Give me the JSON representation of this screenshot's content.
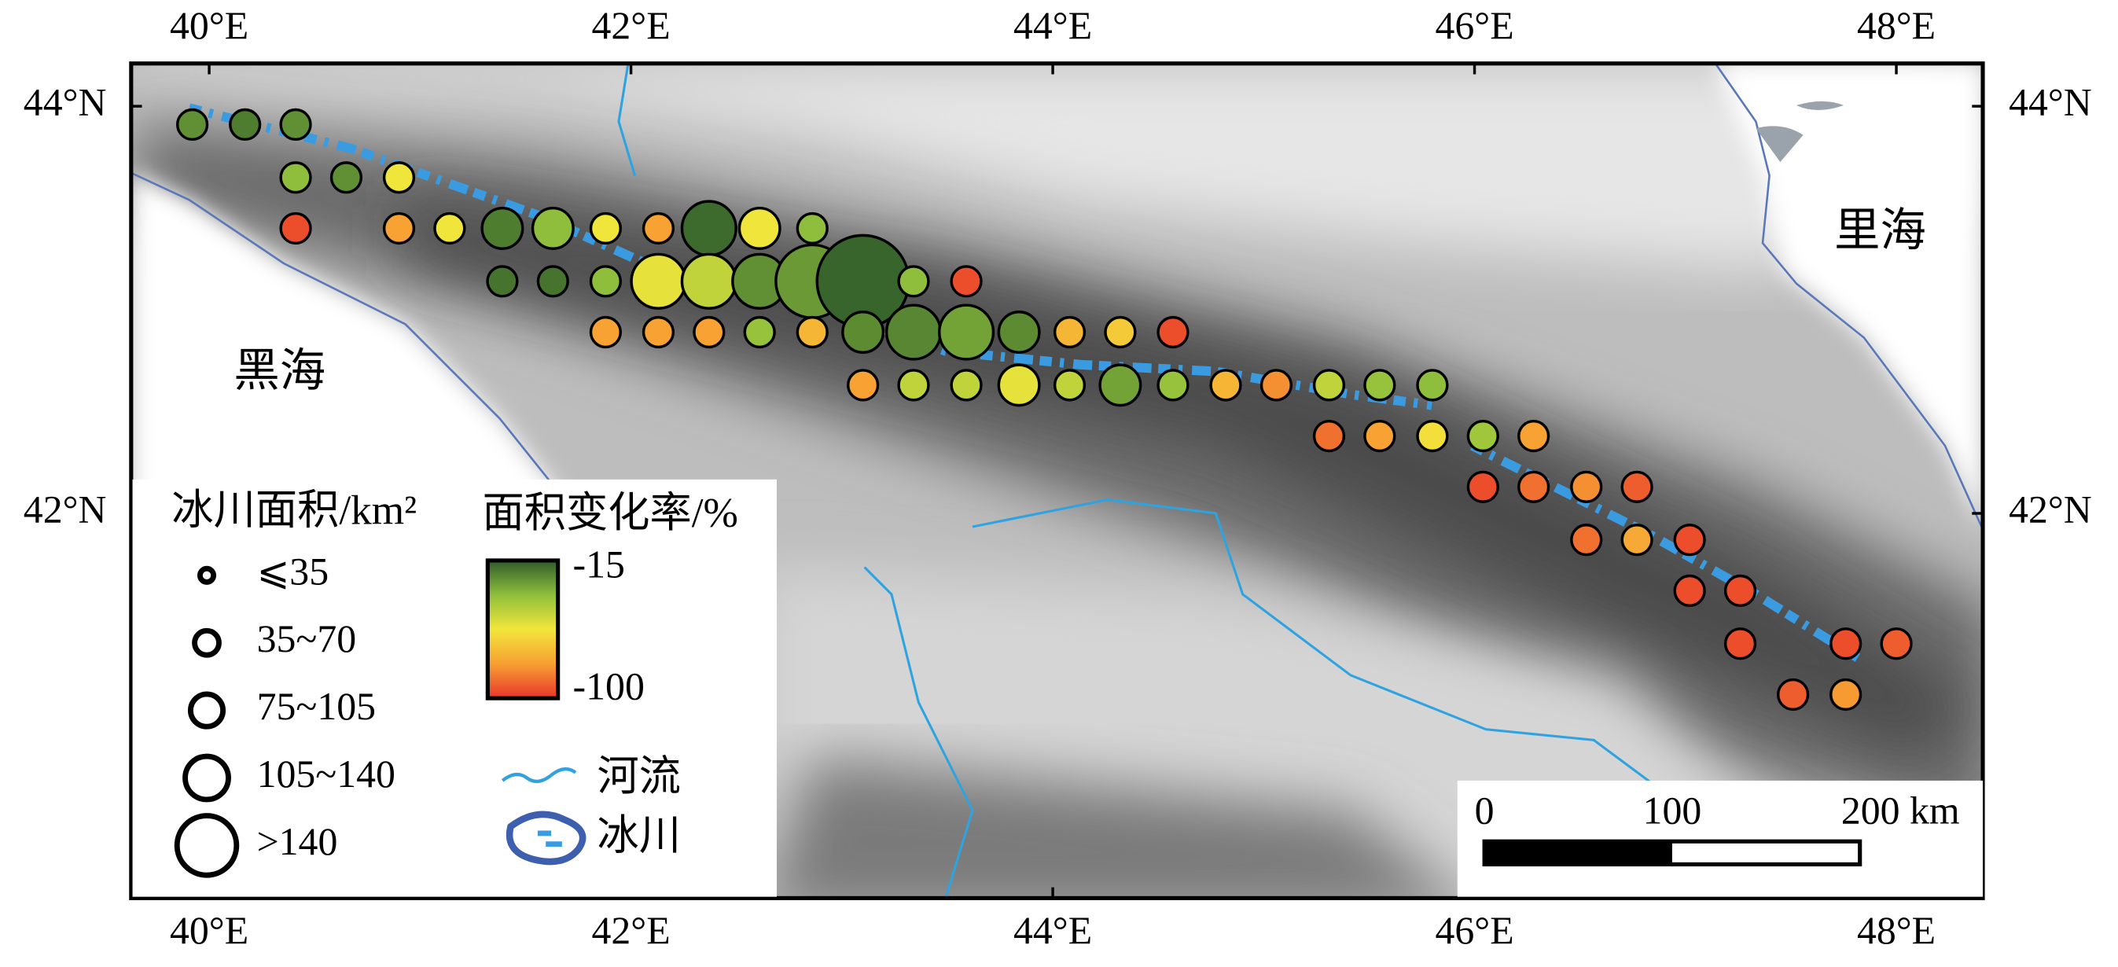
{
  "map": {
    "xlim": [
      39.63,
      48.41
    ],
    "ylim": [
      40.11,
      44.21
    ],
    "xticks": [
      {
        "value": 40,
        "label": "40°E"
      },
      {
        "value": 42,
        "label": "42°E"
      },
      {
        "value": 44,
        "label": "44°E"
      },
      {
        "value": 46,
        "label": "46°E"
      },
      {
        "value": 48,
        "label": "48°E"
      }
    ],
    "yticks": [
      {
        "value": 42,
        "label": "42°N"
      },
      {
        "value": 44,
        "label": "44°N"
      }
    ],
    "seas": [
      "黑海",
      "里海"
    ],
    "legend": {
      "area_title": "冰川面积/km²",
      "area_classes": [
        "⩽35",
        "35~70",
        "75~105",
        "105~140",
        ">140"
      ],
      "rate_title": "面积变化率/%",
      "rate_range": [
        -100,
        -15
      ],
      "rate_colors": [
        "#e8352a",
        "#f7a033",
        "#f2e63b",
        "#8fbf3c",
        "#2f5c2a"
      ],
      "river": "河流",
      "glacier": "冰川"
    },
    "scale_bar": {
      "ticks": [
        0,
        100,
        {
          "value": 200,
          "label": "200 km"
        }
      ]
    },
    "points": [
      [
        39.92,
        43.91,
        0,
        -26
      ],
      [
        40.17,
        43.91,
        0,
        -22
      ],
      [
        40.41,
        43.91,
        0,
        -26
      ],
      [
        40.41,
        43.65,
        0,
        -36
      ],
      [
        40.65,
        43.65,
        0,
        -26
      ],
      [
        40.9,
        43.65,
        0,
        -57
      ],
      [
        40.41,
        43.4,
        0,
        -95
      ],
      [
        40.9,
        43.4,
        0,
        -78
      ],
      [
        41.14,
        43.4,
        0,
        -57
      ],
      [
        41.39,
        43.4,
        1,
        -22
      ],
      [
        41.63,
        43.4,
        1,
        -36
      ],
      [
        41.88,
        43.4,
        0,
        -57
      ],
      [
        42.13,
        43.4,
        0,
        -78
      ],
      [
        42.37,
        43.4,
        2,
        -18
      ],
      [
        42.61,
        43.4,
        1,
        -57
      ],
      [
        42.86,
        43.4,
        0,
        -36
      ],
      [
        41.39,
        43.14,
        0,
        -20
      ],
      [
        41.63,
        43.14,
        0,
        -20
      ],
      [
        41.88,
        43.14,
        0,
        -36
      ],
      [
        42.13,
        43.14,
        2,
        -55
      ],
      [
        42.37,
        43.14,
        2,
        -47
      ],
      [
        42.61,
        43.14,
        2,
        -26
      ],
      [
        42.86,
        43.14,
        3,
        -28
      ],
      [
        43.1,
        43.14,
        4,
        -17
      ],
      [
        43.34,
        43.14,
        0,
        -36
      ],
      [
        43.59,
        43.14,
        0,
        -95
      ],
      [
        41.88,
        42.89,
        0,
        -78
      ],
      [
        42.13,
        42.89,
        0,
        -78
      ],
      [
        42.37,
        42.89,
        0,
        -78
      ],
      [
        42.61,
        42.89,
        0,
        -38
      ],
      [
        42.86,
        42.89,
        0,
        -72
      ],
      [
        43.1,
        42.89,
        1,
        -25
      ],
      [
        43.34,
        42.89,
        2,
        -24
      ],
      [
        43.59,
        42.89,
        2,
        -30
      ],
      [
        43.84,
        42.89,
        1,
        -25
      ],
      [
        44.08,
        42.89,
        0,
        -72
      ],
      [
        44.32,
        42.89,
        0,
        -66
      ],
      [
        44.57,
        42.89,
        0,
        -95
      ],
      [
        43.1,
        42.63,
        0,
        -78
      ],
      [
        43.34,
        42.63,
        0,
        -47
      ],
      [
        43.59,
        42.63,
        0,
        -47
      ],
      [
        43.84,
        42.63,
        1,
        -55
      ],
      [
        44.08,
        42.63,
        0,
        -47
      ],
      [
        44.32,
        42.63,
        1,
        -30
      ],
      [
        44.57,
        42.63,
        0,
        -38
      ],
      [
        44.82,
        42.63,
        0,
        -72
      ],
      [
        45.06,
        42.63,
        0,
        -82
      ],
      [
        45.31,
        42.63,
        0,
        -47
      ],
      [
        45.55,
        42.63,
        0,
        -38
      ],
      [
        45.8,
        42.63,
        0,
        -36
      ],
      [
        45.31,
        42.38,
        0,
        -88
      ],
      [
        45.55,
        42.38,
        0,
        -78
      ],
      [
        45.8,
        42.38,
        0,
        -60
      ],
      [
        46.04,
        42.38,
        0,
        -40
      ],
      [
        46.28,
        42.38,
        0,
        -78
      ],
      [
        46.04,
        42.13,
        0,
        -95
      ],
      [
        46.28,
        42.13,
        0,
        -88
      ],
      [
        46.53,
        42.13,
        0,
        -82
      ],
      [
        46.77,
        42.13,
        0,
        -92
      ],
      [
        46.53,
        41.87,
        0,
        -88
      ],
      [
        46.77,
        41.87,
        0,
        -76
      ],
      [
        47.02,
        41.87,
        0,
        -95
      ],
      [
        47.02,
        41.62,
        0,
        -95
      ],
      [
        47.26,
        41.62,
        0,
        -95
      ],
      [
        47.26,
        41.36,
        0,
        -95
      ],
      [
        47.76,
        41.36,
        0,
        -95
      ],
      [
        48.0,
        41.36,
        0,
        -92
      ],
      [
        47.51,
        41.11,
        0,
        -92
      ],
      [
        47.76,
        41.11,
        0,
        -80
      ]
    ]
  }
}
